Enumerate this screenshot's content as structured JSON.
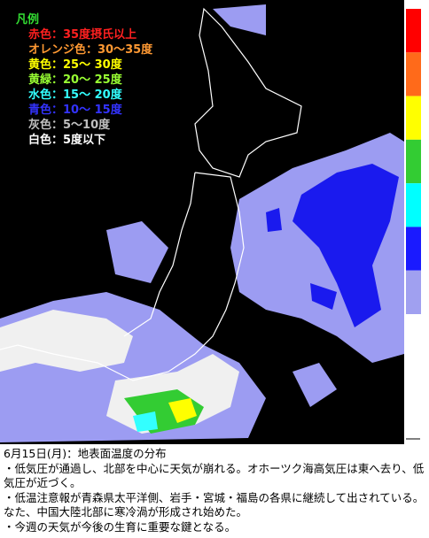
{
  "legend": {
    "title": "凡例",
    "title_color": "#33dd33",
    "items": [
      {
        "text": "赤色：35度摂氏以上",
        "color": "#ff2020"
      },
      {
        "text": "オレンジ色：30～35度",
        "color": "#ff9933"
      },
      {
        "text": "黄色：25～ 30度",
        "color": "#ffff00"
      },
      {
        "text": "黄緑：20～ 25度",
        "color": "#99ff33"
      },
      {
        "text": "水色：15～ 20度",
        "color": "#33ffff"
      },
      {
        "text": "青色：10～ 15度",
        "color": "#3333ff"
      },
      {
        "text": "灰色：5～10度",
        "color": "#c0c0c0"
      },
      {
        "text": "白色：5度以下",
        "color": "#ffffff"
      }
    ]
  },
  "bar_colors": [
    "#ff0000",
    "#ff6a1a",
    "#ffff00",
    "#33cc33",
    "#00ffff",
    "#1a1aff",
    "#a0a0f0"
  ],
  "caption": {
    "title": "6月15日(月)：地表面温度の分布",
    "lines": [
      "・低気圧が通過し、北部を中心に天気が崩れる。オホーツク海高気圧は東へ去り、低気圧が近づく。",
      "・低温注意報が青森県太平洋側、岩手・宮城・福島の各県に継続して出されている。なた、中国大陸北部に寒冷渦が形成され始めた。",
      "・今週の天気が今後の生育に重要な鍵となる。"
    ]
  }
}
